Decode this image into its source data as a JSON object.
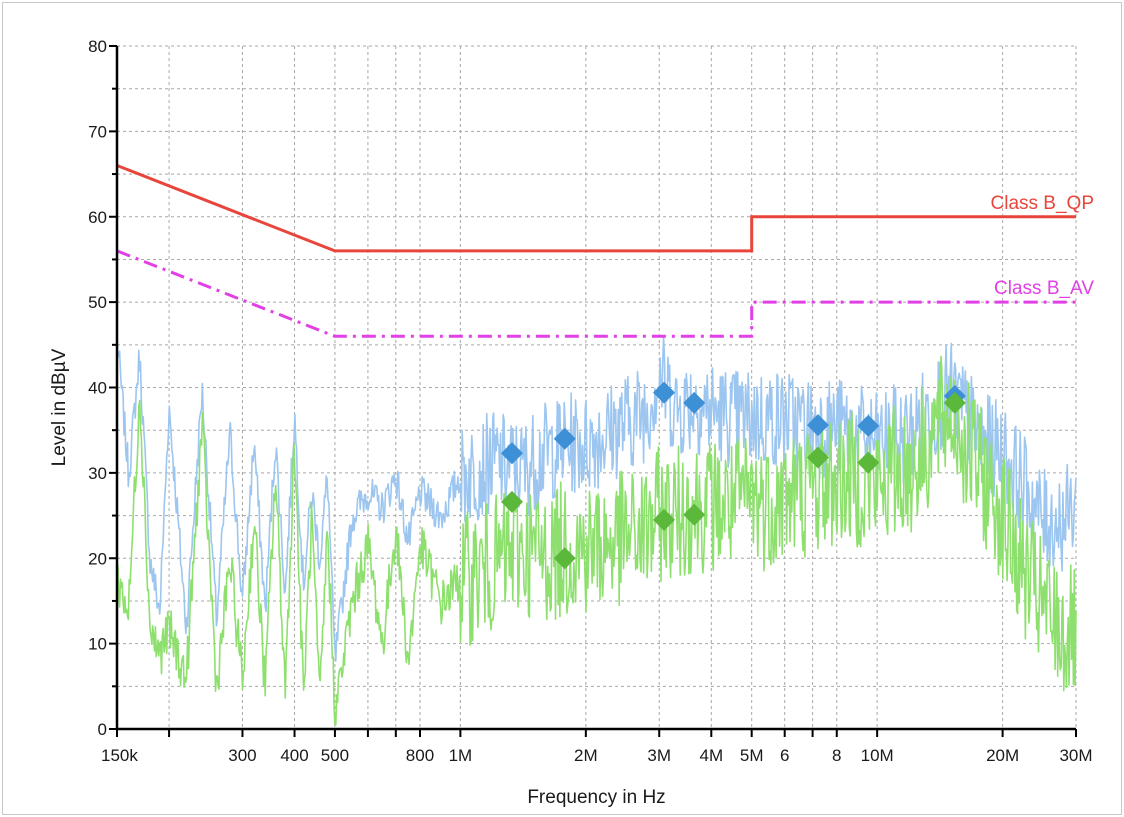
{
  "chart_data": {
    "type": "line",
    "xlabel": "Frequency in Hz",
    "ylabel": "Level in dBµV",
    "x_scale": "log",
    "xlim_hz": [
      150000,
      30000000
    ],
    "ylim": [
      0,
      80
    ],
    "grid": true,
    "y_ticks": [
      0,
      10,
      20,
      30,
      40,
      50,
      60,
      70,
      80
    ],
    "x_ticks": [
      {
        "hz": 150000,
        "label": "150k"
      },
      {
        "hz": 200000,
        "label": ""
      },
      {
        "hz": 300000,
        "label": "300"
      },
      {
        "hz": 400000,
        "label": "400"
      },
      {
        "hz": 500000,
        "label": "500"
      },
      {
        "hz": 600000,
        "label": ""
      },
      {
        "hz": 700000,
        "label": ""
      },
      {
        "hz": 800000,
        "label": "800"
      },
      {
        "hz": 1000000,
        "label": "1M"
      },
      {
        "hz": 2000000,
        "label": "2M"
      },
      {
        "hz": 3000000,
        "label": "3M"
      },
      {
        "hz": 4000000,
        "label": "4M"
      },
      {
        "hz": 5000000,
        "label": "5M"
      },
      {
        "hz": 6000000,
        "label": "6"
      },
      {
        "hz": 7000000,
        "label": ""
      },
      {
        "hz": 8000000,
        "label": "8"
      },
      {
        "hz": 10000000,
        "label": "10M"
      },
      {
        "hz": 20000000,
        "label": "20M"
      },
      {
        "hz": 30000000,
        "label": "30M"
      }
    ],
    "limits": [
      {
        "name": "Class B_QP",
        "color": "#e8453c",
        "style": "solid",
        "points": [
          [
            150000,
            66
          ],
          [
            500000,
            56
          ],
          [
            5000000,
            56
          ],
          [
            5000000,
            60
          ],
          [
            30000000,
            60
          ]
        ]
      },
      {
        "name": "Class B_AV",
        "color": "#e040e6",
        "style": "dash-dot",
        "points": [
          [
            150000,
            56
          ],
          [
            500000,
            46
          ],
          [
            5000000,
            46
          ],
          [
            5000000,
            50
          ],
          [
            30000000,
            50
          ]
        ]
      }
    ],
    "series": [
      {
        "color": "#9cc6f0",
        "style": "noisy-trace",
        "points": [
          [
            150000,
            46
          ],
          [
            160000,
            30
          ],
          [
            170000,
            44
          ],
          [
            180000,
            20
          ],
          [
            190000,
            14
          ],
          [
            200000,
            38
          ],
          [
            220000,
            12
          ],
          [
            240000,
            40
          ],
          [
            260000,
            13
          ],
          [
            280000,
            35
          ],
          [
            300000,
            15
          ],
          [
            320000,
            34
          ],
          [
            340000,
            14
          ],
          [
            360000,
            34
          ],
          [
            380000,
            16
          ],
          [
            400000,
            37
          ],
          [
            420000,
            17
          ],
          [
            440000,
            28
          ],
          [
            460000,
            20
          ],
          [
            480000,
            30
          ],
          [
            500000,
            8
          ],
          [
            550000,
            25
          ],
          [
            600000,
            28
          ],
          [
            650000,
            26
          ],
          [
            700000,
            30
          ],
          [
            750000,
            22
          ],
          [
            800000,
            28
          ],
          [
            900000,
            25
          ],
          [
            1000000,
            30
          ],
          [
            1200000,
            32
          ],
          [
            1400000,
            31
          ],
          [
            1600000,
            33
          ],
          [
            1800000,
            34
          ],
          [
            2000000,
            34
          ],
          [
            2400000,
            36
          ],
          [
            2800000,
            38
          ],
          [
            3000000,
            42
          ],
          [
            3300000,
            38
          ],
          [
            3600000,
            39
          ],
          [
            4000000,
            38
          ],
          [
            4500000,
            37
          ],
          [
            5000000,
            37
          ],
          [
            5500000,
            37
          ],
          [
            6000000,
            37
          ],
          [
            7000000,
            36
          ],
          [
            8000000,
            36
          ],
          [
            9000000,
            35
          ],
          [
            10000000,
            34
          ],
          [
            11000000,
            35
          ],
          [
            12000000,
            35
          ],
          [
            14000000,
            39
          ],
          [
            15000000,
            40
          ],
          [
            16000000,
            38
          ],
          [
            18000000,
            34
          ],
          [
            20000000,
            33
          ],
          [
            22000000,
            30
          ],
          [
            25000000,
            25
          ],
          [
            28000000,
            25
          ],
          [
            30000000,
            27
          ]
        ]
      },
      {
        "color": "#8ee06e",
        "style": "noisy-trace",
        "points": [
          [
            150000,
            18
          ],
          [
            160000,
            14
          ],
          [
            170000,
            40
          ],
          [
            180000,
            12
          ],
          [
            190000,
            9
          ],
          [
            200000,
            12
          ],
          [
            220000,
            6
          ],
          [
            240000,
            36
          ],
          [
            260000,
            5
          ],
          [
            280000,
            20
          ],
          [
            300000,
            6
          ],
          [
            320000,
            25
          ],
          [
            340000,
            5
          ],
          [
            360000,
            30
          ],
          [
            380000,
            5
          ],
          [
            400000,
            34
          ],
          [
            420000,
            4
          ],
          [
            440000,
            25
          ],
          [
            460000,
            3
          ],
          [
            480000,
            24
          ],
          [
            500000,
            2
          ],
          [
            550000,
            15
          ],
          [
            600000,
            22
          ],
          [
            650000,
            10
          ],
          [
            700000,
            24
          ],
          [
            750000,
            8
          ],
          [
            800000,
            22
          ],
          [
            900000,
            15
          ],
          [
            1000000,
            18
          ],
          [
            1200000,
            20
          ],
          [
            1400000,
            22
          ],
          [
            1600000,
            21
          ],
          [
            1800000,
            22
          ],
          [
            2000000,
            22
          ],
          [
            2400000,
            23
          ],
          [
            2800000,
            24
          ],
          [
            3000000,
            26
          ],
          [
            3300000,
            26
          ],
          [
            3600000,
            27
          ],
          [
            4000000,
            27
          ],
          [
            4500000,
            27
          ],
          [
            5000000,
            28
          ],
          [
            5500000,
            27
          ],
          [
            6000000,
            28
          ],
          [
            7000000,
            29
          ],
          [
            8000000,
            30
          ],
          [
            9000000,
            30
          ],
          [
            10000000,
            29
          ],
          [
            11000000,
            31
          ],
          [
            12000000,
            31
          ],
          [
            14000000,
            36
          ],
          [
            15000000,
            38
          ],
          [
            16000000,
            35
          ],
          [
            18000000,
            30
          ],
          [
            20000000,
            26
          ],
          [
            22000000,
            20
          ],
          [
            25000000,
            15
          ],
          [
            28000000,
            12
          ],
          [
            30000000,
            12
          ]
        ]
      },
      {
        "color": "#3d8fd6",
        "style": "markers-diamond",
        "points": [
          [
            1330000,
            32.3
          ],
          [
            1780000,
            34
          ],
          [
            3080000,
            39.4
          ],
          [
            3640000,
            38.2
          ],
          [
            7210000,
            35.6
          ],
          [
            9520000,
            35.5
          ],
          [
            15360000,
            39
          ]
        ]
      },
      {
        "color": "#5cb83a",
        "style": "markers-diamond",
        "points": [
          [
            1330000,
            26.6
          ],
          [
            1780000,
            20
          ],
          [
            3080000,
            24.5
          ],
          [
            3640000,
            25.1
          ],
          [
            7210000,
            31.8
          ],
          [
            9520000,
            31.2
          ],
          [
            15360000,
            38.2
          ]
        ]
      }
    ]
  }
}
